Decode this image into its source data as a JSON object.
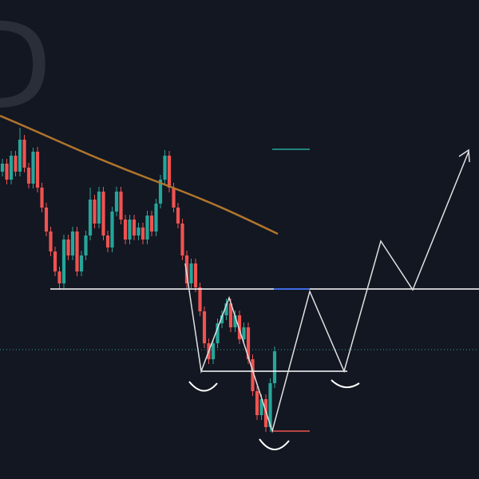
{
  "chart_data": {
    "type": "candlestick",
    "watermark": "D",
    "ylim": [
      0,
      600
    ],
    "up_color": "#26a69a",
    "down_color": "#ef5350",
    "open": [
      385,
      395,
      375,
      405,
      385,
      425,
      390,
      370,
      410,
      365,
      340,
      310,
      285,
      260,
      245,
      300,
      280,
      310,
      260,
      280,
      305,
      350,
      320,
      360,
      305,
      290,
      335,
      360,
      325,
      300,
      325,
      305,
      315,
      300,
      330,
      310,
      345,
      375,
      405,
      365,
      340,
      320,
      280,
      245,
      270,
      240,
      210,
      170,
      150,
      170,
      195,
      205,
      220,
      190,
      205,
      175,
      190,
      150,
      110,
      80,
      100,
      65,
      120
    ],
    "high": [
      401,
      401,
      411,
      411,
      440,
      431,
      396,
      415,
      416,
      371,
      346,
      316,
      291,
      266,
      306,
      306,
      316,
      316,
      286,
      311,
      365,
      356,
      366,
      366,
      311,
      341,
      366,
      366,
      331,
      331,
      331,
      321,
      321,
      336,
      336,
      351,
      381,
      412,
      411,
      371,
      346,
      326,
      286,
      276,
      276,
      246,
      216,
      176,
      176,
      201,
      211,
      226,
      226,
      211,
      211,
      196,
      196,
      156,
      116,
      106,
      106,
      126,
      166
    ],
    "low": [
      379,
      369,
      369,
      379,
      379,
      384,
      364,
      364,
      359,
      334,
      304,
      279,
      254,
      238,
      239,
      274,
      274,
      254,
      254,
      274,
      299,
      314,
      314,
      299,
      284,
      284,
      329,
      319,
      294,
      294,
      299,
      299,
      294,
      294,
      304,
      304,
      339,
      369,
      359,
      334,
      314,
      274,
      239,
      239,
      234,
      204,
      164,
      144,
      144,
      164,
      189,
      199,
      184,
      184,
      169,
      169,
      144,
      104,
      74,
      74,
      59,
      59,
      114
    ],
    "close": [
      395,
      375,
      405,
      385,
      425,
      390,
      370,
      410,
      365,
      340,
      310,
      285,
      260,
      245,
      300,
      280,
      310,
      260,
      280,
      305,
      350,
      320,
      360,
      305,
      290,
      335,
      360,
      325,
      300,
      325,
      305,
      315,
      300,
      330,
      310,
      345,
      375,
      405,
      365,
      340,
      320,
      280,
      245,
      270,
      240,
      210,
      170,
      150,
      170,
      195,
      205,
      220,
      190,
      205,
      175,
      190,
      150,
      110,
      80,
      100,
      65,
      120,
      160
    ]
  }
}
